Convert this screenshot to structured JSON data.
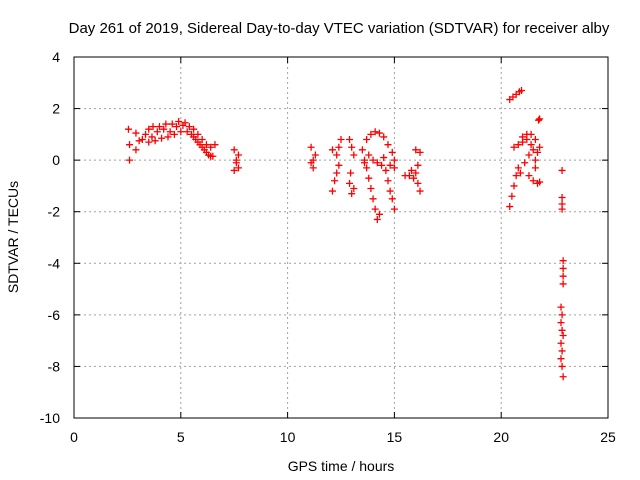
{
  "chart_data": {
    "type": "scatter",
    "title": "Day 261 of 2019, Sidereal Day-to-day VTEC variation (SDTVAR) for receiver alby",
    "xlabel": "GPS time / hours",
    "ylabel": "SDTVAR / TECUs",
    "xlim": [
      0,
      25
    ],
    "ylim": [
      -10,
      4
    ],
    "xticks": [
      0,
      5,
      10,
      15,
      20,
      25
    ],
    "yticks": [
      -10,
      -8,
      -6,
      -4,
      -2,
      0,
      2,
      4
    ],
    "xtick_labels": [
      "0",
      "5",
      "10",
      "15",
      "20",
      "25"
    ],
    "ytick_labels": [
      "-10",
      "-8",
      "-6",
      "-4",
      "-2",
      "0",
      "2",
      "4"
    ],
    "grid": true,
    "legend": "none",
    "marker": "plus",
    "marker_color": "#ff0000",
    "series": [
      {
        "name": "SDTVAR",
        "points": [
          [
            2.55,
            1.2
          ],
          [
            2.6,
            0.6
          ],
          [
            2.6,
            0.0
          ],
          [
            2.9,
            0.4
          ],
          [
            2.9,
            1.05
          ],
          [
            3.05,
            0.75
          ],
          [
            3.2,
            0.8
          ],
          [
            3.35,
            1.0
          ],
          [
            3.5,
            0.7
          ],
          [
            3.5,
            1.2
          ],
          [
            3.65,
            0.9
          ],
          [
            3.7,
            1.3
          ],
          [
            3.8,
            0.75
          ],
          [
            3.9,
            1.1
          ],
          [
            4.0,
            1.3
          ],
          [
            4.1,
            0.85
          ],
          [
            4.2,
            1.2
          ],
          [
            4.3,
            1.4
          ],
          [
            4.4,
            0.9
          ],
          [
            4.5,
            1.1
          ],
          [
            4.6,
            1.4
          ],
          [
            4.7,
            1.0
          ],
          [
            4.8,
            1.3
          ],
          [
            4.9,
            1.5
          ],
          [
            5.0,
            1.1
          ],
          [
            5.1,
            1.35
          ],
          [
            5.2,
            1.45
          ],
          [
            5.3,
            1.1
          ],
          [
            5.4,
            1.3
          ],
          [
            5.5,
            1.0
          ],
          [
            5.6,
            1.2
          ],
          [
            5.7,
            0.8
          ],
          [
            5.8,
            1.0
          ],
          [
            5.9,
            0.6
          ],
          [
            6.0,
            0.8
          ],
          [
            6.1,
            0.4
          ],
          [
            6.2,
            0.6
          ],
          [
            6.3,
            0.2
          ],
          [
            6.4,
            0.5
          ],
          [
            6.5,
            0.15
          ],
          [
            6.6,
            0.6
          ],
          [
            5.6,
            0.9
          ],
          [
            5.8,
            0.7
          ],
          [
            6.0,
            0.5
          ],
          [
            6.2,
            0.3
          ],
          [
            6.4,
            0.15
          ],
          [
            7.5,
            0.4
          ],
          [
            7.5,
            -0.4
          ],
          [
            7.6,
            -0.1
          ],
          [
            7.7,
            0.2
          ],
          [
            7.6,
            0.0
          ],
          [
            7.7,
            -0.3
          ],
          [
            11.1,
            0.5
          ],
          [
            11.2,
            0.0
          ],
          [
            11.2,
            -0.3
          ],
          [
            11.3,
            0.2
          ],
          [
            11.1,
            -0.1
          ],
          [
            12.1,
            -1.2
          ],
          [
            12.2,
            -0.8
          ],
          [
            12.3,
            -0.5
          ],
          [
            12.4,
            -0.2
          ],
          [
            12.1,
            0.4
          ],
          [
            12.3,
            0.2
          ],
          [
            12.5,
            0.8
          ],
          [
            12.4,
            0.5
          ],
          [
            12.9,
            0.8
          ],
          [
            13.0,
            0.5
          ],
          [
            13.1,
            0.2
          ],
          [
            12.9,
            -0.9
          ],
          [
            13.0,
            -1.3
          ],
          [
            13.1,
            -1.1
          ],
          [
            12.95,
            -0.5
          ],
          [
            13.5,
            0.4
          ],
          [
            13.6,
            0.0
          ],
          [
            13.7,
            -0.3
          ],
          [
            13.8,
            -0.7
          ],
          [
            13.9,
            -1.1
          ],
          [
            14.0,
            -1.5
          ],
          [
            14.1,
            -1.9
          ],
          [
            14.2,
            -2.3
          ],
          [
            14.3,
            -2.1
          ],
          [
            13.7,
            0.8
          ],
          [
            13.9,
            1.0
          ],
          [
            14.1,
            1.1
          ],
          [
            14.3,
            1.05
          ],
          [
            14.5,
            0.9
          ],
          [
            14.7,
            0.6
          ],
          [
            14.9,
            0.3
          ],
          [
            15.0,
            0.0
          ],
          [
            13.8,
            0.2
          ],
          [
            14.0,
            0.0
          ],
          [
            14.2,
            -0.1
          ],
          [
            14.4,
            -0.2
          ],
          [
            14.6,
            -0.4
          ],
          [
            14.7,
            -0.8
          ],
          [
            14.8,
            -1.2
          ],
          [
            14.9,
            -1.5
          ],
          [
            15.0,
            -1.9
          ],
          [
            14.5,
            0.1
          ],
          [
            14.8,
            -0.2
          ],
          [
            15.0,
            -0.3
          ],
          [
            13.6,
            -0.1
          ],
          [
            15.5,
            -0.6
          ],
          [
            15.7,
            -0.6
          ],
          [
            15.9,
            -0.7
          ],
          [
            15.8,
            -0.4
          ],
          [
            16.0,
            -0.5
          ],
          [
            16.1,
            -0.9
          ],
          [
            16.2,
            -1.2
          ],
          [
            16.0,
            0.4
          ],
          [
            16.2,
            0.3
          ],
          [
            16.1,
            -0.2
          ],
          [
            20.4,
            2.35
          ],
          [
            20.55,
            2.45
          ],
          [
            20.7,
            2.55
          ],
          [
            20.85,
            2.65
          ],
          [
            20.95,
            2.7
          ],
          [
            20.4,
            -1.8
          ],
          [
            20.5,
            -1.4
          ],
          [
            20.6,
            -1.0
          ],
          [
            20.7,
            -0.6
          ],
          [
            20.8,
            -0.3
          ],
          [
            20.6,
            0.5
          ],
          [
            20.8,
            0.6
          ],
          [
            21.0,
            0.7
          ],
          [
            21.2,
            0.8
          ],
          [
            21.4,
            1.0
          ],
          [
            21.6,
            0.8
          ],
          [
            21.8,
            0.5
          ],
          [
            21.3,
            -0.6
          ],
          [
            21.5,
            -0.8
          ],
          [
            21.7,
            -0.9
          ],
          [
            21.8,
            -0.85
          ],
          [
            20.9,
            -0.5
          ],
          [
            21.1,
            -0.1
          ],
          [
            21.3,
            0.2
          ],
          [
            21.5,
            0.4
          ],
          [
            21.6,
            0.0
          ],
          [
            21.7,
            0.3
          ],
          [
            21.0,
            0.9
          ],
          [
            21.2,
            1.0
          ],
          [
            21.4,
            0.6
          ],
          [
            21.75,
            1.55
          ],
          [
            21.8,
            1.6
          ],
          [
            21.6,
            -0.3
          ],
          [
            22.85,
            -0.4
          ],
          [
            22.85,
            -1.45
          ],
          [
            22.85,
            -1.7
          ],
          [
            22.85,
            -1.9
          ],
          [
            22.9,
            -3.9
          ],
          [
            22.9,
            -4.2
          ],
          [
            22.9,
            -4.5
          ],
          [
            22.9,
            -4.8
          ],
          [
            22.8,
            -5.7
          ],
          [
            22.85,
            -6.0
          ],
          [
            22.8,
            -6.3
          ],
          [
            22.85,
            -6.6
          ],
          [
            22.9,
            -6.8
          ],
          [
            22.8,
            -7.1
          ],
          [
            22.85,
            -7.4
          ],
          [
            22.8,
            -7.7
          ],
          [
            22.85,
            -8.0
          ],
          [
            22.9,
            -8.4
          ]
        ]
      }
    ]
  }
}
